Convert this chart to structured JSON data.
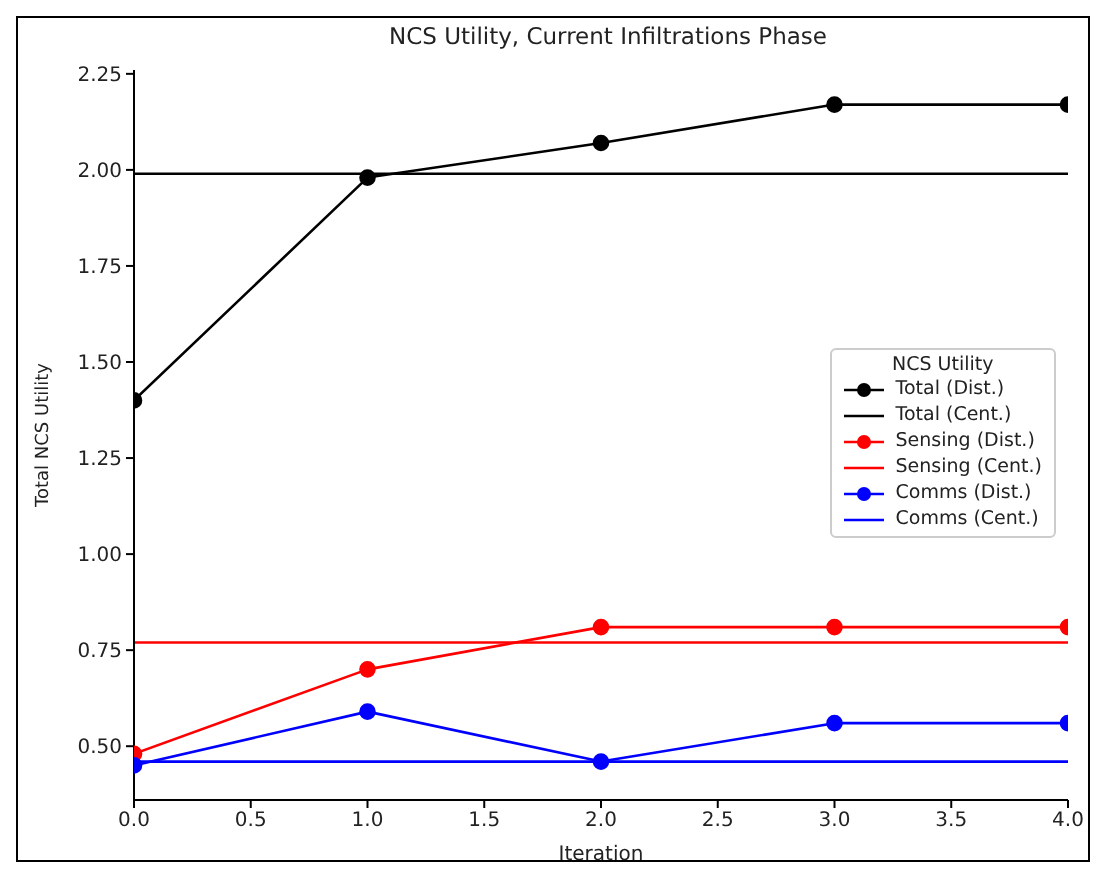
{
  "chart_data": {
    "type": "line",
    "title": "NCS Utility, Current Infiltrations Phase",
    "xlabel": "Iteration",
    "ylabel": "Total NCS Utility",
    "legend_title": "NCS Utility",
    "x": [
      0,
      1,
      2,
      3,
      4
    ],
    "series": [
      {
        "name": "Total (Dist.)",
        "color": "#000000",
        "marker": "circle",
        "values": [
          1.4,
          1.98,
          2.07,
          2.17,
          2.17
        ]
      },
      {
        "name": "Total (Cent.)",
        "color": "#000000",
        "marker": "none",
        "values": [
          1.99,
          1.99,
          1.99,
          1.99,
          1.99
        ]
      },
      {
        "name": "Sensing (Dist.)",
        "color": "#ff0000",
        "marker": "circle",
        "values": [
          0.48,
          0.7,
          0.81,
          0.81,
          0.81
        ]
      },
      {
        "name": "Sensing (Cent.)",
        "color": "#ff0000",
        "marker": "none",
        "values": [
          0.77,
          0.77,
          0.77,
          0.77,
          0.77
        ]
      },
      {
        "name": "Comms (Dist.)",
        "color": "#0000ff",
        "marker": "circle",
        "values": [
          0.45,
          0.59,
          0.46,
          0.56,
          0.56
        ]
      },
      {
        "name": "Comms (Cent.)",
        "color": "#0000ff",
        "marker": "none",
        "values": [
          0.46,
          0.46,
          0.46,
          0.46,
          0.46
        ]
      }
    ],
    "xlim": [
      0,
      4
    ],
    "xticks": [
      {
        "value": 0,
        "label": "0.0"
      },
      0.5,
      {
        "value": 1,
        "label": "1.0"
      },
      1.5,
      {
        "value": 2,
        "label": "2.0"
      },
      2.5,
      {
        "value": 3,
        "label": "3.0"
      },
      3.5,
      {
        "value": 4,
        "label": "4.0"
      }
    ],
    "ylim": [
      0.36,
      2.26
    ],
    "yticks": [
      {
        "value": 0.5,
        "label": "0.50"
      },
      0.75,
      {
        "value": 1,
        "label": "1.00"
      },
      1.25,
      {
        "value": 1.5,
        "label": "1.50"
      },
      1.75,
      {
        "value": 2,
        "label": "2.00"
      },
      2.25
    ],
    "grid": false,
    "legend": "right",
    "line_style": "solid"
  }
}
